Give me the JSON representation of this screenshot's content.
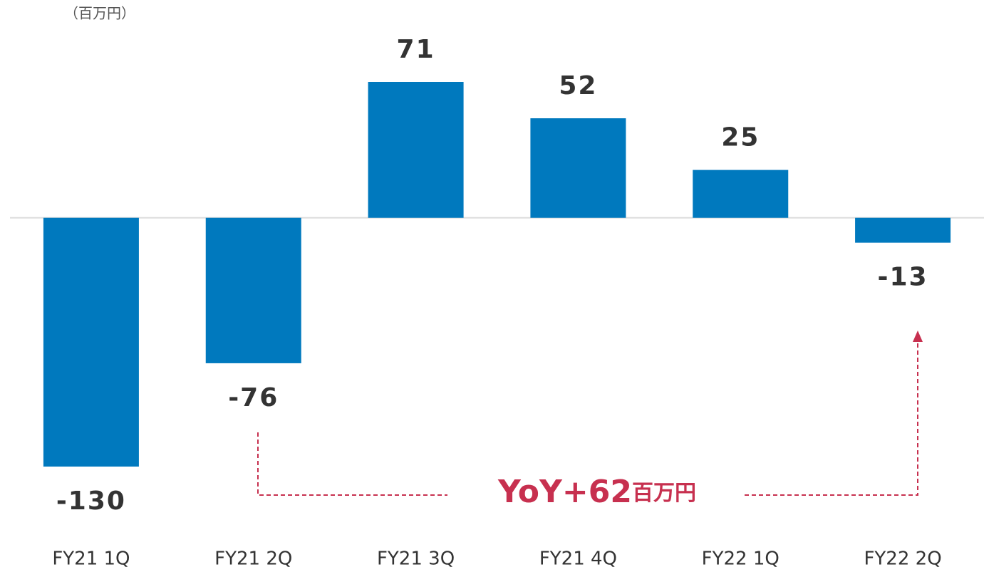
{
  "chart_data": {
    "type": "bar",
    "unit_label": "（百万円）",
    "categories": [
      "FY21 1Q",
      "FY21 2Q",
      "FY21 3Q",
      "FY21 4Q",
      "FY22 1Q",
      "FY22 2Q"
    ],
    "values": [
      -130,
      -76,
      71,
      52,
      25,
      -13
    ],
    "color": "#0079be",
    "annotation": {
      "value": "YoY+62",
      "unit": "百万円"
    },
    "annotation_color": "#c7304f"
  }
}
